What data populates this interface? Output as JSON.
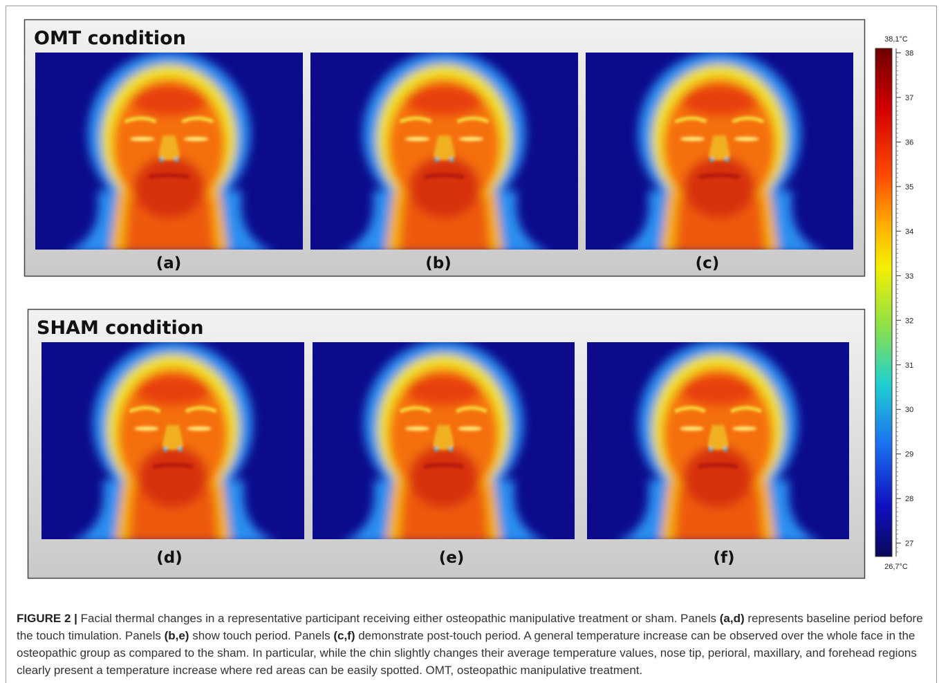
{
  "figure": {
    "panels": [
      {
        "title": "OMT condition",
        "images": [
          "(a)",
          "(b)",
          "(c)"
        ]
      },
      {
        "title": "SHAM condition",
        "images": [
          "(d)",
          "(e)",
          "(f)"
        ]
      }
    ],
    "colorbar": {
      "max": {
        "value": 38.1,
        "label": "38,1°C"
      },
      "min": {
        "value": 26.7,
        "label": "26,7°C"
      },
      "ticks": [
        38,
        37,
        36,
        35,
        34,
        33,
        32,
        31,
        30,
        29,
        28,
        27
      ]
    },
    "caption": [
      {
        "text": "FIGURE 2 |",
        "bold": true
      },
      {
        "text": " Facial thermal changes in a representative participant receiving either osteopathic manipulative treatment or sham. Panels ",
        "bold": false
      },
      {
        "text": "(a,d)",
        "bold": true
      },
      {
        "text": " represents baseline period before the touch timulation. Panels ",
        "bold": false
      },
      {
        "text": "(b,e)",
        "bold": true
      },
      {
        "text": " show touch period. Panels ",
        "bold": false
      },
      {
        "text": "(c,f)",
        "bold": true
      },
      {
        "text": " demonstrate post-touch period. A general temperature increase can be observed over the whole face in the osteopathic group as compared to the sham. In particular, while the chin slightly changes their average temperature values, nose tip, perioral, maxillary, and forehead regions clearly present a temperature increase where red areas can be easily spotted. OMT, osteopathic manipulative treatment.",
        "bold": false
      }
    ]
  }
}
